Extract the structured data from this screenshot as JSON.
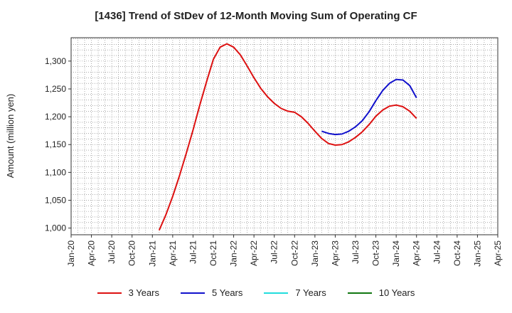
{
  "chart_data": {
    "type": "line",
    "title": "[1436]  Trend of StDev of 12-Month Moving Sum of Operating CF",
    "ylabel": "Amount (million yen)",
    "xlabel": "",
    "ylim": [
      988,
      1342
    ],
    "y_ticks": [
      1000,
      1050,
      1100,
      1150,
      1200,
      1250,
      1300
    ],
    "y_tick_labels": [
      "1,000",
      "1,050",
      "1,100",
      "1,150",
      "1,200",
      "1,250",
      "1,300"
    ],
    "x_start": "2020-01",
    "x_end": "2025-04",
    "x_tick_labels": [
      "Jan-20",
      "Apr-20",
      "Jul-20",
      "Oct-20",
      "Jan-21",
      "Apr-21",
      "Jul-21",
      "Oct-21",
      "Jan-22",
      "Apr-22",
      "Jul-22",
      "Oct-22",
      "Jan-23",
      "Apr-23",
      "Jul-23",
      "Oct-23",
      "Jan-24",
      "Apr-24",
      "Jul-24",
      "Oct-24",
      "Jan-25",
      "Apr-25"
    ],
    "grid": true,
    "legend_position": "bottom",
    "series": [
      {
        "name": "3 Years",
        "color": "#dd1111",
        "x": [
          "2021-02",
          "2021-03",
          "2021-04",
          "2021-05",
          "2021-06",
          "2021-07",
          "2021-08",
          "2021-09",
          "2021-10",
          "2021-11",
          "2021-12",
          "2022-01",
          "2022-02",
          "2022-03",
          "2022-04",
          "2022-05",
          "2022-06",
          "2022-07",
          "2022-08",
          "2022-09",
          "2022-10",
          "2022-11",
          "2022-12",
          "2023-01",
          "2023-02",
          "2023-03",
          "2023-04",
          "2023-05",
          "2023-06",
          "2023-07",
          "2023-08",
          "2023-09",
          "2023-10",
          "2023-11",
          "2023-12",
          "2024-01",
          "2024-02",
          "2024-03",
          "2024-04"
        ],
        "y": [
          996,
          1024,
          1057,
          1094,
          1134,
          1176,
          1221,
          1263,
          1303,
          1325,
          1331,
          1325,
          1311,
          1291,
          1270,
          1251,
          1236,
          1224,
          1215,
          1210,
          1208,
          1200,
          1188,
          1174,
          1161,
          1152,
          1149,
          1150,
          1155,
          1163,
          1173,
          1186,
          1201,
          1212,
          1219,
          1221,
          1218,
          1210,
          1197
        ]
      },
      {
        "name": "5 Years",
        "color": "#1111cc",
        "x": [
          "2023-02",
          "2023-03",
          "2023-04",
          "2023-05",
          "2023-06",
          "2023-07",
          "2023-08",
          "2023-09",
          "2023-10",
          "2023-11",
          "2023-12",
          "2024-01",
          "2024-02",
          "2024-03",
          "2024-04"
        ],
        "y": [
          1174,
          1170,
          1168,
          1169,
          1174,
          1182,
          1193,
          1209,
          1229,
          1247,
          1260,
          1267,
          1266,
          1256,
          1234
        ]
      },
      {
        "name": "7 Years",
        "color": "#22dddd",
        "x": [],
        "y": []
      },
      {
        "name": "10 Years",
        "color": "#117711",
        "x": [],
        "y": []
      }
    ]
  }
}
